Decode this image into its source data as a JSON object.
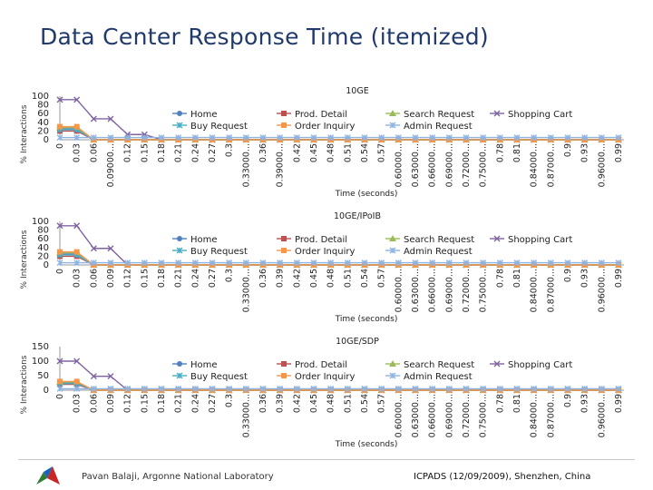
{
  "page": {
    "title": "Data Center Response Time (itemized)"
  },
  "footer": {
    "left": "Pavan Balaji, Argonne National Laboratory",
    "right": "ICPADS (12/09/2009), Shenzhen, China"
  },
  "legend": [
    {
      "name": "Home",
      "color": "#4f81bd",
      "marker": "circle"
    },
    {
      "name": "Prod. Detail",
      "color": "#c0504d",
      "marker": "square"
    },
    {
      "name": "Search Request",
      "color": "#9bbb59",
      "marker": "triangle"
    },
    {
      "name": "Shopping Cart",
      "color": "#8064a2",
      "marker": "x"
    },
    {
      "name": "Buy Request",
      "color": "#4bacc6",
      "marker": "star"
    },
    {
      "name": "Order Inquiry",
      "color": "#f79646",
      "marker": "square"
    },
    {
      "name": "Admin Request",
      "color": "#8eb4e3",
      "marker": "star"
    }
  ],
  "chart_data": [
    {
      "type": "line",
      "title": "10GE",
      "xlabel": "Time (seconds)",
      "ylabel": "% Interactions",
      "yticks": [
        "100",
        "80",
        "60",
        "40",
        "20",
        "0"
      ],
      "ylim": [
        0,
        100
      ],
      "categories": [
        "0",
        "0.03",
        "0.06",
        "0.09000...",
        "0.12",
        "0.15",
        "0.18",
        "0.21",
        "0.24",
        "0.27",
        "0.3",
        "0.33000...",
        "0.36",
        "0.39000...",
        "0.42",
        "0.45",
        "0.48",
        "0.51",
        "0.54",
        "0.57",
        "0.60000...",
        "0.63000...",
        "0.66000...",
        "0.69000...",
        "0.72000...",
        "0.75000...",
        "0.78",
        "0.81",
        "0.84000...",
        "0.87000...",
        "0.9",
        "0.93",
        "0.96000...",
        "0.99"
      ],
      "series": [
        {
          "name": "Shopping Cart",
          "values": [
            92,
            92,
            48,
            48,
            12,
            12,
            0,
            0,
            0,
            0,
            0,
            0,
            0,
            0,
            0,
            0,
            0,
            0,
            0,
            0,
            0,
            0,
            0,
            0,
            0,
            0,
            0,
            0,
            0,
            0,
            0,
            0,
            0,
            0
          ]
        },
        {
          "name": "Home",
          "values": [
            25,
            25,
            0,
            0,
            0,
            0,
            0,
            0,
            0,
            0,
            0,
            0,
            0,
            0,
            0,
            0,
            0,
            0,
            0,
            0,
            0,
            0,
            0,
            0,
            0,
            0,
            0,
            0,
            0,
            0,
            0,
            0,
            0,
            0
          ]
        },
        {
          "name": "Prod. Detail",
          "values": [
            20,
            20,
            0,
            0,
            0,
            0,
            0,
            0,
            0,
            0,
            0,
            0,
            0,
            0,
            0,
            0,
            0,
            0,
            0,
            0,
            0,
            0,
            0,
            0,
            0,
            0,
            0,
            0,
            0,
            0,
            0,
            0,
            0,
            0
          ]
        },
        {
          "name": "Search Request",
          "values": [
            28,
            28,
            0,
            0,
            0,
            0,
            0,
            0,
            0,
            0,
            0,
            0,
            0,
            0,
            0,
            0,
            0,
            0,
            0,
            0,
            0,
            0,
            0,
            0,
            0,
            0,
            0,
            0,
            0,
            0,
            0,
            0,
            0,
            0
          ]
        },
        {
          "name": "Buy Request",
          "values": [
            23,
            23,
            0,
            0,
            0,
            0,
            0,
            0,
            0,
            0,
            0,
            0,
            0,
            0,
            0,
            0,
            0,
            0,
            0,
            0,
            0,
            0,
            0,
            0,
            0,
            0,
            0,
            0,
            0,
            0,
            0,
            0,
            0,
            0
          ]
        },
        {
          "name": "Order Inquiry",
          "values": [
            30,
            30,
            0,
            0,
            0,
            0,
            0,
            0,
            0,
            0,
            0,
            0,
            0,
            0,
            0,
            0,
            0,
            0,
            0,
            0,
            0,
            0,
            0,
            0,
            0,
            0,
            0,
            0,
            0,
            0,
            0,
            0,
            0,
            0
          ]
        },
        {
          "name": "Admin Request",
          "values": [
            5,
            5,
            5,
            5,
            5,
            5,
            5,
            5,
            5,
            5,
            5,
            5,
            5,
            5,
            5,
            5,
            5,
            5,
            5,
            5,
            5,
            5,
            5,
            5,
            5,
            5,
            5,
            5,
            5,
            5,
            5,
            5,
            5,
            5
          ]
        }
      ]
    },
    {
      "type": "line",
      "title": "10GE/IPoIB",
      "xlabel": "Time (seconds)",
      "ylabel": "% Interactions",
      "yticks": [
        "100",
        "80",
        "60",
        "40",
        "20",
        "0"
      ],
      "ylim": [
        0,
        100
      ],
      "categories": [
        "0",
        "0.03",
        "0.06",
        "0.09",
        "0.12",
        "0.15",
        "0.18",
        "0.21",
        "0.24",
        "0.27",
        "0.3",
        "0.33000...",
        "0.36",
        "0.39",
        "0.42",
        "0.45",
        "0.48",
        "0.51",
        "0.54",
        "0.57",
        "0.60000...",
        "0.63000...",
        "0.66000...",
        "0.69000...",
        "0.72000...",
        "0.75000...",
        "0.78",
        "0.81",
        "0.84000...",
        "0.87000...",
        "0.9",
        "0.93",
        "0.96000...",
        "0.99"
      ],
      "series": [
        {
          "name": "Shopping Cart",
          "values": [
            90,
            90,
            38,
            38,
            0,
            0,
            0,
            0,
            0,
            0,
            0,
            0,
            0,
            0,
            0,
            0,
            0,
            0,
            0,
            0,
            0,
            0,
            0,
            0,
            0,
            0,
            0,
            0,
            0,
            0,
            0,
            0,
            0,
            0
          ]
        },
        {
          "name": "Home",
          "values": [
            25,
            25,
            0,
            0,
            0,
            0,
            0,
            0,
            0,
            0,
            0,
            0,
            0,
            0,
            0,
            0,
            0,
            0,
            0,
            0,
            0,
            0,
            0,
            0,
            0,
            0,
            0,
            0,
            0,
            0,
            0,
            0,
            0,
            0
          ]
        },
        {
          "name": "Prod. Detail",
          "values": [
            20,
            20,
            0,
            0,
            0,
            0,
            0,
            0,
            0,
            0,
            0,
            0,
            0,
            0,
            0,
            0,
            0,
            0,
            0,
            0,
            0,
            0,
            0,
            0,
            0,
            0,
            0,
            0,
            0,
            0,
            0,
            0,
            0,
            0
          ]
        },
        {
          "name": "Search Request",
          "values": [
            28,
            28,
            0,
            0,
            0,
            0,
            0,
            0,
            0,
            0,
            0,
            0,
            0,
            0,
            0,
            0,
            0,
            0,
            0,
            0,
            0,
            0,
            0,
            0,
            0,
            0,
            0,
            0,
            0,
            0,
            0,
            0,
            0,
            0
          ]
        },
        {
          "name": "Buy Request",
          "values": [
            23,
            23,
            0,
            0,
            0,
            0,
            0,
            0,
            0,
            0,
            0,
            0,
            0,
            0,
            0,
            0,
            0,
            0,
            0,
            0,
            0,
            0,
            0,
            0,
            0,
            0,
            0,
            0,
            0,
            0,
            0,
            0,
            0,
            0
          ]
        },
        {
          "name": "Order Inquiry",
          "values": [
            30,
            30,
            0,
            0,
            0,
            0,
            0,
            0,
            0,
            0,
            0,
            0,
            0,
            0,
            0,
            0,
            0,
            0,
            0,
            0,
            0,
            0,
            0,
            0,
            0,
            0,
            0,
            0,
            0,
            0,
            0,
            0,
            0,
            0
          ]
        },
        {
          "name": "Admin Request",
          "values": [
            5,
            5,
            5,
            5,
            5,
            5,
            5,
            5,
            5,
            5,
            5,
            5,
            5,
            5,
            5,
            5,
            5,
            5,
            5,
            5,
            5,
            5,
            5,
            5,
            5,
            5,
            5,
            5,
            5,
            5,
            5,
            5,
            5,
            5
          ]
        }
      ]
    },
    {
      "type": "line",
      "title": "10GE/SDP",
      "xlabel": "Time (seconds)",
      "ylabel": "% Interactions",
      "yticks": [
        "150",
        "100",
        "50",
        "0"
      ],
      "ylim": [
        0,
        150
      ],
      "categories": [
        "0",
        "0.03",
        "0.06",
        "0.09",
        "0.12",
        "0.15",
        "0.18",
        "0.21",
        "0.24",
        "0.27",
        "0.3",
        "0.33000...",
        "0.36",
        "0.39",
        "0.42",
        "0.45",
        "0.48",
        "0.51",
        "0.54",
        "0.57",
        "0.60000...",
        "0.63000...",
        "0.66000...",
        "0.69000...",
        "0.72000...",
        "0.75000...",
        "0.78",
        "0.81",
        "0.84000...",
        "0.87000...",
        "0.9",
        "0.93",
        "0.96000...",
        "0.99"
      ],
      "series": [
        {
          "name": "Shopping Cart",
          "values": [
            100,
            100,
            48,
            48,
            0,
            0,
            0,
            0,
            0,
            0,
            0,
            0,
            0,
            0,
            0,
            0,
            0,
            0,
            0,
            0,
            0,
            0,
            0,
            0,
            0,
            0,
            0,
            0,
            0,
            0,
            0,
            0,
            0,
            0
          ]
        },
        {
          "name": "Home",
          "values": [
            25,
            25,
            0,
            0,
            0,
            0,
            0,
            0,
            0,
            0,
            0,
            0,
            0,
            0,
            0,
            0,
            0,
            0,
            0,
            0,
            0,
            0,
            0,
            0,
            0,
            0,
            0,
            0,
            0,
            0,
            0,
            0,
            0,
            0
          ]
        },
        {
          "name": "Prod. Detail",
          "values": [
            20,
            20,
            0,
            0,
            0,
            0,
            0,
            0,
            0,
            0,
            0,
            0,
            0,
            0,
            0,
            0,
            0,
            0,
            0,
            0,
            0,
            0,
            0,
            0,
            0,
            0,
            0,
            0,
            0,
            0,
            0,
            0,
            0,
            0
          ]
        },
        {
          "name": "Search Request",
          "values": [
            28,
            28,
            0,
            0,
            0,
            0,
            0,
            0,
            0,
            0,
            0,
            0,
            0,
            0,
            0,
            0,
            0,
            0,
            0,
            0,
            0,
            0,
            0,
            0,
            0,
            0,
            0,
            0,
            0,
            0,
            0,
            0,
            0,
            0
          ]
        },
        {
          "name": "Buy Request",
          "values": [
            23,
            23,
            0,
            0,
            0,
            0,
            0,
            0,
            0,
            0,
            0,
            0,
            0,
            0,
            0,
            0,
            0,
            0,
            0,
            0,
            0,
            0,
            0,
            0,
            0,
            0,
            0,
            0,
            0,
            0,
            0,
            0,
            0,
            0
          ]
        },
        {
          "name": "Order Inquiry",
          "values": [
            30,
            30,
            0,
            0,
            0,
            0,
            0,
            0,
            0,
            0,
            0,
            0,
            0,
            0,
            0,
            0,
            0,
            0,
            0,
            0,
            0,
            0,
            0,
            0,
            0,
            0,
            0,
            0,
            0,
            0,
            0,
            0,
            0,
            0
          ]
        },
        {
          "name": "Admin Request",
          "values": [
            5,
            5,
            5,
            5,
            5,
            5,
            5,
            5,
            5,
            5,
            5,
            5,
            5,
            5,
            5,
            5,
            5,
            5,
            5,
            5,
            5,
            5,
            5,
            5,
            5,
            5,
            5,
            5,
            5,
            5,
            5,
            5,
            5,
            5
          ]
        }
      ]
    }
  ]
}
